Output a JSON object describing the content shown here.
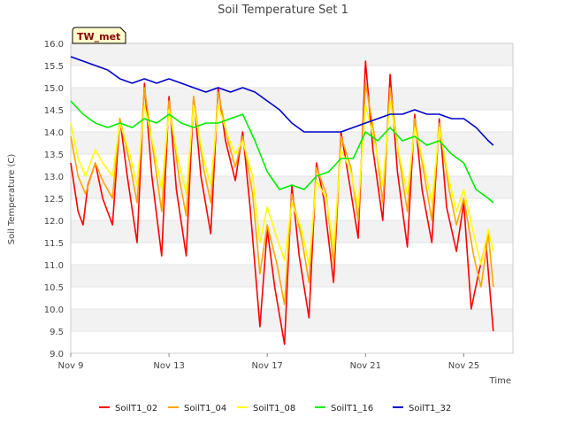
{
  "chart_data": {
    "type": "line",
    "title": "Soil Temperature Set 1",
    "xlabel": "Time",
    "ylabel": "Soil Temperature (C)",
    "badge": "TW_met",
    "x_ticks": [
      "Nov 9",
      "Nov 13",
      "Nov 17",
      "Nov 21",
      "Nov 25"
    ],
    "x_tick_days": [
      9,
      13,
      17,
      21,
      25
    ],
    "xlim": [
      9,
      27
    ],
    "ylim": [
      9.0,
      16.0
    ],
    "y_ticks": [
      "9.0",
      "9.5",
      "10.0",
      "10.5",
      "11.0",
      "11.5",
      "12.0",
      "12.5",
      "13.0",
      "13.5",
      "14.0",
      "14.5",
      "15.0",
      "15.5",
      "16.0"
    ],
    "grid": "horizontal bands",
    "legend_position": "bottom",
    "x_unit": "day of November",
    "series": [
      {
        "name": "SoilT1_02",
        "color": "#ff0000",
        "x": [
          9.0,
          9.3,
          9.5,
          9.7,
          10.0,
          10.3,
          10.7,
          11.0,
          11.3,
          11.7,
          12.0,
          12.3,
          12.7,
          13.0,
          13.3,
          13.7,
          14.0,
          14.3,
          14.7,
          15.0,
          15.3,
          15.7,
          16.0,
          16.3,
          16.7,
          17.0,
          17.3,
          17.7,
          18.0,
          18.3,
          18.7,
          19.0,
          19.3,
          19.7,
          20.0,
          20.3,
          20.7,
          21.0,
          21.3,
          21.7,
          22.0,
          22.3,
          22.7,
          23.0,
          23.3,
          23.7,
          24.0,
          24.3,
          24.7,
          25.0,
          25.3,
          25.6,
          25.9,
          26.2
        ],
        "y": [
          13.3,
          12.2,
          11.9,
          12.8,
          13.3,
          12.5,
          11.9,
          14.3,
          13.0,
          11.5,
          15.1,
          13.0,
          11.2,
          14.8,
          12.7,
          11.2,
          14.8,
          13.0,
          11.7,
          15.0,
          13.8,
          12.9,
          14.0,
          12.3,
          9.6,
          11.8,
          10.5,
          9.2,
          12.8,
          11.2,
          9.8,
          13.3,
          12.5,
          10.6,
          14.0,
          13.0,
          11.6,
          15.6,
          13.6,
          12.0,
          15.3,
          13.1,
          11.4,
          14.4,
          12.7,
          11.5,
          14.3,
          12.3,
          11.3,
          12.4,
          10.0,
          10.8,
          11.5,
          9.5
        ]
      },
      {
        "name": "SoilT1_04",
        "color": "#ffa500",
        "x": [
          9.0,
          9.3,
          9.6,
          10.0,
          10.3,
          10.7,
          11.0,
          11.4,
          11.7,
          12.0,
          12.4,
          12.7,
          13.0,
          13.4,
          13.7,
          14.0,
          14.4,
          14.7,
          15.0,
          15.4,
          15.7,
          16.0,
          16.4,
          16.7,
          17.0,
          17.4,
          17.7,
          18.0,
          18.4,
          18.7,
          19.0,
          19.4,
          19.7,
          20.0,
          20.4,
          20.7,
          21.0,
          21.4,
          21.7,
          22.0,
          22.4,
          22.7,
          23.0,
          23.4,
          23.7,
          24.0,
          24.4,
          24.7,
          25.0,
          25.4,
          25.7,
          26.0,
          26.2
        ],
        "y": [
          13.9,
          13.0,
          12.6,
          13.3,
          12.9,
          12.5,
          14.3,
          13.3,
          12.4,
          15.0,
          13.4,
          12.2,
          14.7,
          13.0,
          12.1,
          14.8,
          13.2,
          12.4,
          14.9,
          13.8,
          13.2,
          13.9,
          12.6,
          10.8,
          11.9,
          11.0,
          10.1,
          12.6,
          11.6,
          10.6,
          13.2,
          12.6,
          11.0,
          13.9,
          13.2,
          12.0,
          15.1,
          13.8,
          12.4,
          15.0,
          13.3,
          12.2,
          14.3,
          13.0,
          12.0,
          14.2,
          12.7,
          11.9,
          12.5,
          11.2,
          10.5,
          11.7,
          10.5
        ]
      },
      {
        "name": "SoilT1_08",
        "color": "#ffff00",
        "x": [
          9.0,
          9.3,
          9.6,
          10.0,
          10.3,
          10.7,
          11.0,
          11.4,
          11.7,
          12.0,
          12.4,
          12.7,
          13.0,
          13.4,
          13.7,
          14.0,
          14.4,
          14.7,
          15.0,
          15.4,
          15.7,
          16.0,
          16.4,
          16.7,
          17.0,
          17.4,
          17.7,
          18.0,
          18.4,
          18.7,
          19.0,
          19.4,
          19.7,
          20.0,
          20.4,
          20.7,
          21.0,
          21.4,
          21.7,
          22.0,
          22.4,
          22.7,
          23.0,
          23.4,
          23.7,
          24.0,
          24.4,
          24.7,
          25.0,
          25.4,
          25.7,
          26.0,
          26.2
        ],
        "y": [
          14.2,
          13.4,
          13.0,
          13.6,
          13.3,
          13.0,
          14.2,
          13.5,
          12.8,
          14.6,
          13.6,
          12.7,
          14.5,
          13.3,
          12.6,
          14.6,
          13.4,
          12.8,
          14.6,
          13.9,
          13.5,
          13.8,
          13.0,
          11.5,
          12.3,
          11.6,
          11.1,
          12.4,
          11.8,
          11.0,
          12.9,
          12.5,
          11.4,
          13.6,
          13.1,
          12.3,
          14.6,
          13.7,
          12.8,
          14.7,
          13.4,
          12.6,
          14.1,
          13.2,
          12.4,
          14.1,
          12.9,
          12.2,
          12.7,
          11.7,
          11.0,
          11.8,
          11.3
        ]
      },
      {
        "name": "SoilT1_16",
        "color": "#00ee00",
        "x": [
          9.0,
          9.5,
          10.0,
          10.5,
          11.0,
          11.5,
          12.0,
          12.5,
          13.0,
          13.5,
          14.0,
          14.5,
          15.0,
          15.5,
          16.0,
          16.5,
          17.0,
          17.5,
          18.0,
          18.5,
          19.0,
          19.5,
          20.0,
          20.5,
          21.0,
          21.5,
          22.0,
          22.5,
          23.0,
          23.5,
          24.0,
          24.5,
          25.0,
          25.5,
          26.0,
          26.2
        ],
        "y": [
          14.7,
          14.4,
          14.2,
          14.1,
          14.2,
          14.1,
          14.3,
          14.2,
          14.4,
          14.2,
          14.1,
          14.2,
          14.2,
          14.3,
          14.4,
          13.8,
          13.1,
          12.7,
          12.8,
          12.7,
          13.0,
          13.1,
          13.4,
          13.4,
          14.0,
          13.8,
          14.1,
          13.8,
          13.9,
          13.7,
          13.8,
          13.5,
          13.3,
          12.7,
          12.5,
          12.4
        ]
      },
      {
        "name": "SoilT1_32",
        "color": "#0000cc",
        "x": [
          9.0,
          9.5,
          10.0,
          10.5,
          11.0,
          11.5,
          12.0,
          12.5,
          13.0,
          13.5,
          14.0,
          14.5,
          15.0,
          15.5,
          16.0,
          16.5,
          17.0,
          17.5,
          18.0,
          18.5,
          19.0,
          19.5,
          20.0,
          20.5,
          21.0,
          21.5,
          22.0,
          22.5,
          23.0,
          23.5,
          24.0,
          24.5,
          25.0,
          25.5,
          26.0,
          26.2
        ],
        "y": [
          15.7,
          15.6,
          15.5,
          15.4,
          15.2,
          15.1,
          15.2,
          15.1,
          15.2,
          15.1,
          15.0,
          14.9,
          15.0,
          14.9,
          15.0,
          14.9,
          14.7,
          14.5,
          14.2,
          14.0,
          14.0,
          14.0,
          14.0,
          14.1,
          14.2,
          14.3,
          14.4,
          14.4,
          14.5,
          14.4,
          14.4,
          14.3,
          14.3,
          14.1,
          13.8,
          13.7
        ]
      }
    ]
  }
}
